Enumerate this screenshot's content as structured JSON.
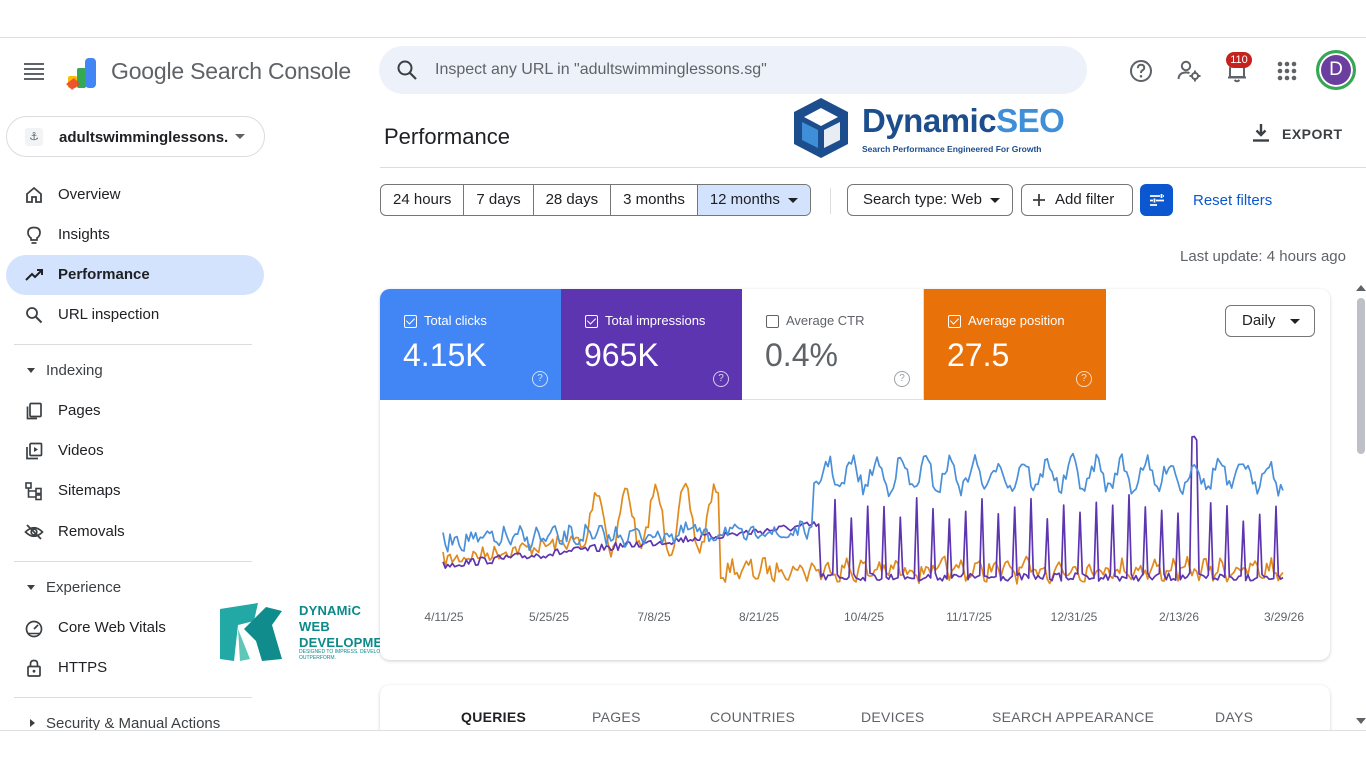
{
  "header": {
    "brand": "Google Search Console",
    "search_placeholder": "Inspect any URL in \"adultswimminglessons.sg\"",
    "notification_count": "110",
    "avatar_letter": "D"
  },
  "sidebar": {
    "property": "adultswimminglessons....",
    "top_items": [
      {
        "label": "Overview",
        "icon": "home-icon"
      },
      {
        "label": "Insights",
        "icon": "lightbulb-icon"
      },
      {
        "label": "Performance",
        "icon": "trending-up-icon",
        "active": true
      },
      {
        "label": "URL inspection",
        "icon": "search-icon"
      }
    ],
    "indexing": {
      "title": "Indexing",
      "items": [
        {
          "label": "Pages",
          "icon": "pages-icon"
        },
        {
          "label": "Videos",
          "icon": "video-icon"
        },
        {
          "label": "Sitemaps",
          "icon": "sitemap-icon"
        },
        {
          "label": "Removals",
          "icon": "eye-off-icon"
        }
      ]
    },
    "experience": {
      "title": "Experience",
      "items": [
        {
          "label": "Core Web Vitals",
          "icon": "gauge-icon"
        },
        {
          "label": "HTTPS",
          "icon": "lock-icon"
        }
      ]
    },
    "security_title": "Security & Manual Actions"
  },
  "watermark_web": {
    "line1": "DYNAMiC",
    "line2": "WEB",
    "line3": "DEVELOPMENT",
    "tagline": "DESIGNED TO IMPRESS. DEVELOPED TO OUTPERFORM."
  },
  "watermark_seo": {
    "name_a": "Dynamic",
    "name_b": "SEO",
    "tagline": "Search Performance Engineered For Growth"
  },
  "main": {
    "title": "Performance",
    "export_label": "EXPORT",
    "date_ranges": [
      "24 hours",
      "7 days",
      "28 days",
      "3 months",
      "12 months"
    ],
    "selected_range": "12 months",
    "search_type": "Search type: Web",
    "add_filter": "Add filter",
    "reset_filters": "Reset filters",
    "last_update": "Last update: 4 hours ago",
    "granularity": "Daily"
  },
  "metrics": [
    {
      "label": "Total clicks",
      "value": "4.15K",
      "checked": true,
      "color": "#4285f4"
    },
    {
      "label": "Total impressions",
      "value": "965K",
      "checked": true,
      "color": "#5e35b1"
    },
    {
      "label": "Average CTR",
      "value": "0.4%",
      "checked": false,
      "color": "#ffffff"
    },
    {
      "label": "Average position",
      "value": "27.5",
      "checked": true,
      "color": "#e8710a"
    }
  ],
  "chart_data": {
    "type": "line",
    "x_ticks": [
      "4/11/25",
      "5/25/25",
      "7/8/25",
      "8/21/25",
      "10/4/25",
      "11/17/25",
      "12/31/25",
      "2/13/26",
      "3/29/26"
    ],
    "series": [
      {
        "name": "Total clicks",
        "color": "#4a90d9"
      },
      {
        "name": "Total impressions",
        "color": "#5e35b1"
      },
      {
        "name": "Average position",
        "color": "#e08a1e"
      }
    ]
  },
  "tabs": [
    "QUERIES",
    "PAGES",
    "COUNTRIES",
    "DEVICES",
    "SEARCH APPEARANCE",
    "DAYS"
  ],
  "selected_tab": "QUERIES"
}
